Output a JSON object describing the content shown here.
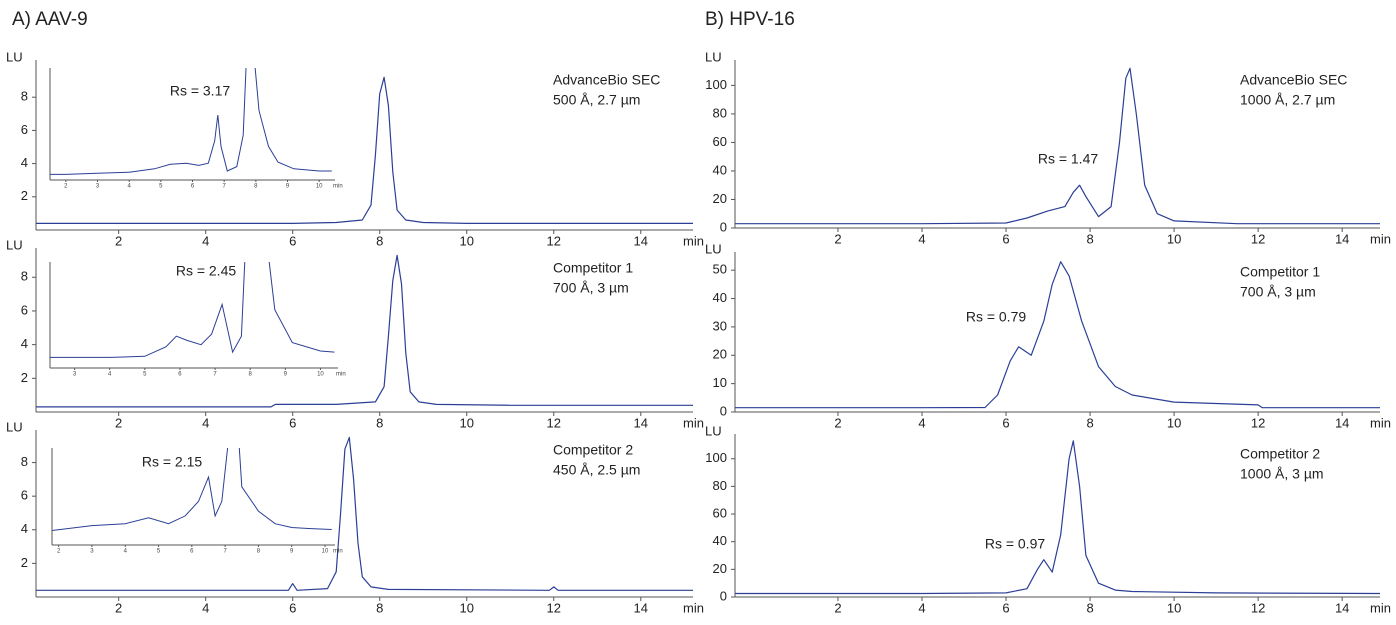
{
  "chart_data": [
    {
      "type": "line",
      "title": "A) AAV-9",
      "ylabel": "LU",
      "xlabel": "min",
      "labels": [
        "AdvanceBio SEC",
        "500 Å, 2.7 µm"
      ],
      "annotation": "Rs = 3.17",
      "color": "#2b3f96",
      "xlim": [
        0.1,
        15.2
      ],
      "ylim": [
        0,
        10
      ],
      "xticks": [
        2,
        4,
        6,
        8,
        10,
        12,
        14
      ],
      "yticks": [
        2,
        4,
        6,
        8
      ],
      "x": [
        0.1,
        2,
        4,
        6,
        7,
        7.6,
        7.8,
        7.9,
        8.0,
        8.1,
        8.2,
        8.3,
        8.4,
        8.6,
        9,
        10,
        12,
        15.2
      ],
      "values": [
        0.4,
        0.4,
        0.4,
        0.4,
        0.45,
        0.6,
        1.5,
        4.5,
        8.2,
        9.2,
        7.5,
        3.5,
        1.2,
        0.6,
        0.45,
        0.4,
        0.4,
        0.4
      ],
      "inset": {
        "xlim": [
          1.5,
          10.5
        ],
        "ylim": [
          0,
          1
        ],
        "xticks": [
          2,
          3,
          4,
          5,
          6,
          7,
          8,
          9,
          10
        ],
        "xlabel": "min",
        "x": [
          1.5,
          2,
          3,
          4,
          4.8,
          5.3,
          5.8,
          6.2,
          6.5,
          6.7,
          6.8,
          6.9,
          7.1,
          7.4,
          7.6,
          7.75,
          7.85,
          8.1,
          8.4,
          8.7,
          9.2,
          10,
          10.4
        ],
        "values": [
          0.05,
          0.05,
          0.06,
          0.07,
          0.1,
          0.14,
          0.15,
          0.13,
          0.15,
          0.35,
          0.58,
          0.3,
          0.08,
          0.12,
          0.4,
          1.4,
          1.4,
          0.62,
          0.3,
          0.16,
          0.1,
          0.08,
          0.08
        ]
      }
    },
    {
      "type": "line",
      "ylabel": "LU",
      "xlabel": "min",
      "labels": [
        "Competitor 1",
        "700 Å, 3 µm"
      ],
      "annotation": "Rs = 2.45",
      "color": "#2b3f96",
      "xlim": [
        0.1,
        15.2
      ],
      "ylim": [
        0,
        9.5
      ],
      "xticks": [
        2,
        4,
        6,
        8,
        10,
        12,
        14
      ],
      "yticks": [
        2,
        4,
        6,
        8
      ],
      "x": [
        0.1,
        2,
        4,
        5.5,
        5.6,
        7,
        7.9,
        8.1,
        8.2,
        8.3,
        8.4,
        8.5,
        8.6,
        8.7,
        8.9,
        9.3,
        11,
        13,
        15.2
      ],
      "values": [
        0.3,
        0.3,
        0.3,
        0.3,
        0.45,
        0.45,
        0.6,
        1.5,
        4.5,
        7.8,
        9.3,
        7.6,
        3.5,
        1.2,
        0.6,
        0.45,
        0.4,
        0.4,
        0.4
      ],
      "inset": {
        "xlim": [
          2.3,
          10.5
        ],
        "ylim": [
          0,
          1
        ],
        "xticks": [
          3,
          4,
          5,
          6,
          7,
          8,
          9,
          10
        ],
        "xlabel": "min",
        "x": [
          2.3,
          3,
          4,
          5,
          5.6,
          5.9,
          6.2,
          6.6,
          6.9,
          7.2,
          7.5,
          7.75,
          7.9,
          8.4,
          8.7,
          9.2,
          10,
          10.4
        ],
        "values": [
          0.1,
          0.1,
          0.1,
          0.11,
          0.2,
          0.3,
          0.26,
          0.22,
          0.32,
          0.6,
          0.15,
          0.3,
          1.4,
          1.4,
          0.55,
          0.24,
          0.16,
          0.15
        ]
      }
    },
    {
      "type": "line",
      "ylabel": "LU",
      "xlabel": "min",
      "labels": [
        "Competitor 2",
        "450 Å, 2.5 µm"
      ],
      "annotation": "Rs = 2.15",
      "color": "#2b3f96",
      "xlim": [
        0.1,
        15.2
      ],
      "ylim": [
        0,
        9.7
      ],
      "xticks": [
        2,
        4,
        6,
        8,
        10,
        12,
        14
      ],
      "yticks": [
        2,
        4,
        6,
        8
      ],
      "x": [
        0.1,
        2,
        4,
        5.9,
        6.0,
        6.1,
        6.8,
        7.0,
        7.1,
        7.2,
        7.3,
        7.4,
        7.5,
        7.6,
        7.8,
        8.2,
        11.9,
        12.0,
        12.1,
        15.2
      ],
      "values": [
        0.4,
        0.4,
        0.4,
        0.4,
        0.8,
        0.4,
        0.5,
        1.5,
        5.0,
        8.8,
        9.5,
        7.0,
        3.2,
        1.2,
        0.6,
        0.45,
        0.4,
        0.6,
        0.4,
        0.4
      ],
      "inset": {
        "xlim": [
          1.8,
          10.3
        ],
        "ylim": [
          0,
          1
        ],
        "xticks": [
          2,
          3,
          4,
          5,
          6,
          7,
          8,
          9,
          10
        ],
        "xlabel": "min",
        "x": [
          1.8,
          3,
          4,
          4.7,
          5.3,
          5.8,
          6.2,
          6.5,
          6.7,
          6.9,
          7.2,
          7.35,
          7.5,
          8.0,
          8.5,
          9.0,
          9.5,
          10.2
        ],
        "values": [
          0.15,
          0.2,
          0.22,
          0.28,
          0.22,
          0.3,
          0.45,
          0.7,
          0.3,
          0.45,
          1.4,
          1.4,
          0.6,
          0.35,
          0.22,
          0.18,
          0.17,
          0.16
        ]
      }
    },
    {
      "type": "line",
      "title": "B) HPV-16",
      "ylabel": "LU",
      "xlabel": "min",
      "labels": [
        "AdvanceBio SEC",
        "1000 Å, 2.7 µm"
      ],
      "annotation": "Rs = 1.47",
      "color": "#2b3f96",
      "xlim": [
        -0.45,
        14.9
      ],
      "ylim": [
        0,
        115
      ],
      "xticks": [
        2,
        4,
        6,
        8,
        10,
        12,
        14
      ],
      "yticks": [
        0,
        20,
        40,
        60,
        80,
        100
      ],
      "x": [
        -0.45,
        2,
        4,
        6,
        6.5,
        7,
        7.4,
        7.6,
        7.75,
        7.9,
        8.2,
        8.5,
        8.7,
        8.85,
        8.95,
        9.1,
        9.3,
        9.6,
        10,
        11.5,
        14.9
      ],
      "values": [
        3,
        3,
        3,
        3.5,
        7,
        12,
        15,
        25,
        30,
        22,
        8,
        15,
        60,
        105,
        112,
        80,
        30,
        10,
        5,
        3,
        3
      ]
    },
    {
      "type": "line",
      "ylabel": "LU",
      "xlabel": "min",
      "labels": [
        "Competitor 1",
        "700 Å, 3 µm"
      ],
      "annotation": "Rs = 0.79",
      "color": "#2b3f96",
      "xlim": [
        -0.45,
        14.9
      ],
      "ylim": [
        0,
        55
      ],
      "xticks": [
        2,
        4,
        6,
        8,
        10,
        12,
        14
      ],
      "yticks": [
        0,
        10,
        20,
        30,
        40,
        50
      ],
      "x": [
        -0.45,
        2,
        4,
        5.5,
        5.8,
        6.1,
        6.3,
        6.6,
        6.9,
        7.1,
        7.3,
        7.5,
        7.8,
        8.2,
        8.6,
        9,
        10,
        12,
        12.1,
        14.9
      ],
      "values": [
        1.5,
        1.5,
        1.5,
        1.6,
        6,
        18,
        23,
        20,
        32,
        45,
        53,
        48,
        32,
        16,
        9,
        6,
        3.5,
        2.5,
        1.5,
        1.5
      ]
    },
    {
      "type": "line",
      "ylabel": "LU",
      "xlabel": "min",
      "labels": [
        "Competitor 2",
        "1000 Å, 3 µm"
      ],
      "annotation": "Rs = 0.97",
      "color": "#2b3f96",
      "xlim": [
        -0.45,
        14.9
      ],
      "ylim": [
        0,
        115
      ],
      "xticks": [
        2,
        4,
        6,
        8,
        10,
        12,
        14
      ],
      "yticks": [
        0,
        20,
        40,
        60,
        80,
        100
      ],
      "x": [
        -0.45,
        2,
        4,
        6,
        6.5,
        6.75,
        6.9,
        7.1,
        7.3,
        7.5,
        7.6,
        7.75,
        7.9,
        8.2,
        8.6,
        9,
        11,
        14.9
      ],
      "values": [
        2.5,
        2.5,
        2.5,
        3,
        6,
        20,
        27,
        18,
        45,
        100,
        113,
        80,
        30,
        10,
        5,
        4,
        3,
        2.5
      ]
    }
  ]
}
